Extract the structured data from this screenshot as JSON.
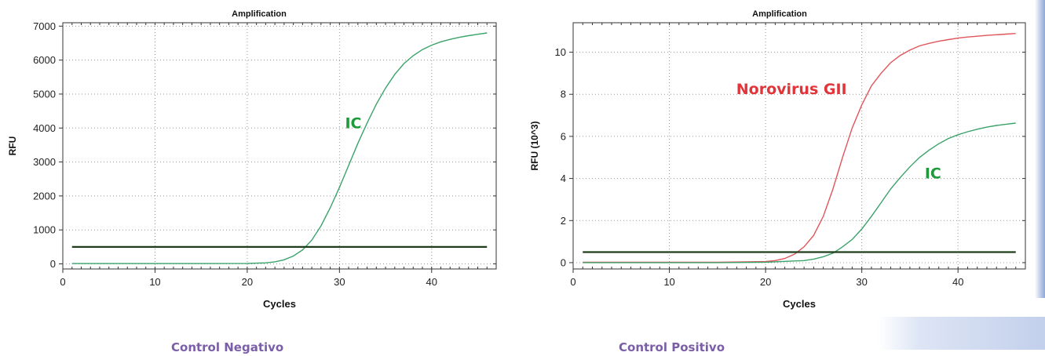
{
  "captions": {
    "left": "Control Negativo",
    "right": "Control Positivo"
  },
  "colors": {
    "ic": "#3aa36a",
    "norovirus": "#e0555a",
    "ic_label": "#1f9a3a",
    "norovirus_label": "#e0353a",
    "threshold": "#1f3d1a",
    "caption": "#7b5ea7"
  },
  "chart_data": [
    {
      "type": "line",
      "title": "Amplification",
      "xlabel": "Cycles",
      "ylabel": "RFU",
      "xlim": [
        0,
        47
      ],
      "ylim": [
        -150,
        7100
      ],
      "xticks": [
        0,
        10,
        20,
        30,
        40
      ],
      "yticks": [
        0,
        1000,
        2000,
        3000,
        4000,
        5000,
        6000,
        7000
      ],
      "grid": true,
      "threshold": 500,
      "annotations": [
        {
          "text": "IC",
          "x": 31.5,
          "y": 4000,
          "color": "#1f9a3a"
        }
      ],
      "series": [
        {
          "color": "#3aa36a",
          "x": [
            1,
            5,
            10,
            15,
            20,
            22,
            23,
            24,
            25,
            26,
            27,
            28,
            29,
            30,
            31,
            32,
            33,
            34,
            35,
            36,
            37,
            38,
            39,
            40,
            41,
            42,
            43,
            44,
            45,
            46
          ],
          "y": [
            10,
            10,
            10,
            10,
            15,
            30,
            60,
            120,
            230,
            410,
            700,
            1120,
            1650,
            2250,
            2900,
            3550,
            4150,
            4700,
            5180,
            5580,
            5900,
            6130,
            6310,
            6440,
            6540,
            6610,
            6670,
            6720,
            6760,
            6800
          ]
        }
      ]
    },
    {
      "type": "line",
      "title": "Amplification",
      "xlabel": "Cycles",
      "ylabel": "RFU (10^3)",
      "xlim": [
        0,
        47
      ],
      "ylim": [
        -0.3,
        11.4
      ],
      "xticks": [
        0,
        10,
        20,
        30,
        40
      ],
      "yticks": [
        0,
        2,
        4,
        6,
        8,
        10
      ],
      "grid": true,
      "threshold": 0.5,
      "annotations": [
        {
          "text": "Norovirus GII",
          "x": 22.7,
          "y": 8.0,
          "color": "#e0353a"
        },
        {
          "text": "IC",
          "x": 37.4,
          "y": 4.0,
          "color": "#1f9a3a"
        }
      ],
      "series": [
        {
          "color": "#e0555a",
          "x": [
            1,
            5,
            10,
            15,
            20,
            21,
            22,
            23,
            24,
            25,
            26,
            27,
            28,
            29,
            30,
            31,
            32,
            33,
            34,
            35,
            36,
            37,
            38,
            39,
            40,
            41,
            42,
            43,
            44,
            45,
            46
          ],
          "y": [
            0.02,
            0.02,
            0.02,
            0.02,
            0.05,
            0.1,
            0.2,
            0.4,
            0.75,
            1.3,
            2.2,
            3.5,
            5.0,
            6.4,
            7.5,
            8.4,
            9.0,
            9.5,
            9.85,
            10.1,
            10.3,
            10.42,
            10.52,
            10.6,
            10.67,
            10.72,
            10.76,
            10.8,
            10.83,
            10.86,
            10.89
          ]
        },
        {
          "color": "#3aa36a",
          "x": [
            1,
            5,
            10,
            15,
            20,
            24,
            25,
            26,
            27,
            28,
            29,
            30,
            31,
            32,
            33,
            34,
            35,
            36,
            37,
            38,
            39,
            40,
            41,
            42,
            43,
            44,
            45,
            46
          ],
          "y": [
            0.0,
            0.0,
            0.0,
            0.0,
            0.02,
            0.1,
            0.17,
            0.28,
            0.45,
            0.75,
            1.1,
            1.6,
            2.2,
            2.85,
            3.5,
            4.05,
            4.55,
            5.0,
            5.35,
            5.65,
            5.9,
            6.08,
            6.22,
            6.34,
            6.44,
            6.52,
            6.58,
            6.63
          ]
        }
      ]
    }
  ]
}
